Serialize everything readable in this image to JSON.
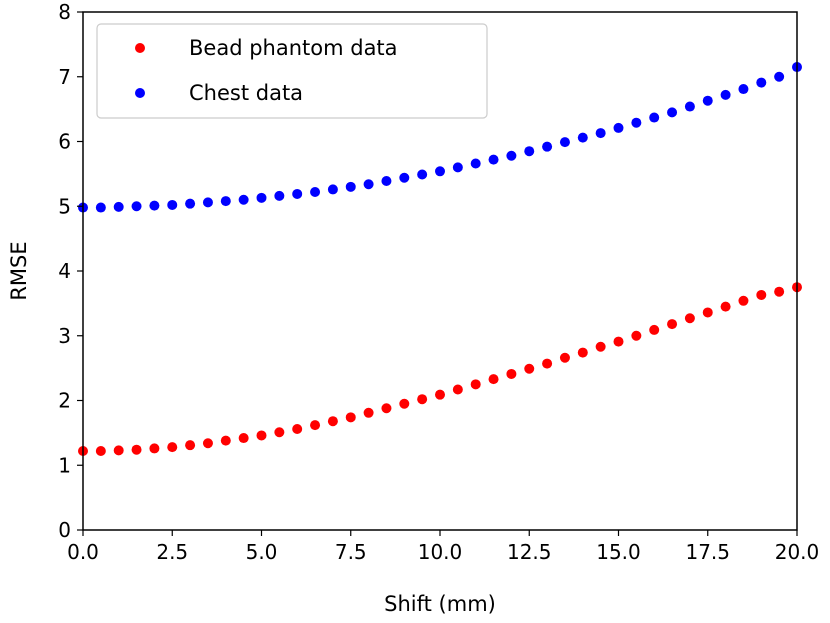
{
  "chart_data": {
    "type": "scatter",
    "title": "",
    "xlabel": "Shift (mm)",
    "ylabel": "RMSE",
    "xlim": [
      0,
      20
    ],
    "ylim": [
      0,
      8
    ],
    "xticks": [
      "0.0",
      "2.5",
      "5.0",
      "7.5",
      "10.0",
      "12.5",
      "15.0",
      "17.5",
      "20.0"
    ],
    "yticks": [
      "0",
      "1",
      "2",
      "3",
      "4",
      "5",
      "6",
      "7",
      "8"
    ],
    "grid": false,
    "legend_position": "upper-left",
    "x": [
      0.0,
      0.5,
      1.0,
      1.5,
      2.0,
      2.5,
      3.0,
      3.5,
      4.0,
      4.5,
      5.0,
      5.5,
      6.0,
      6.5,
      7.0,
      7.5,
      8.0,
      8.5,
      9.0,
      9.5,
      10.0,
      10.5,
      11.0,
      11.5,
      12.0,
      12.5,
      13.0,
      13.5,
      14.0,
      14.5,
      15.0,
      15.5,
      16.0,
      16.5,
      17.0,
      17.5,
      18.0,
      18.5,
      19.0,
      19.5,
      20.0
    ],
    "series": [
      {
        "name": "Bead phantom data",
        "color": "#ff0000",
        "values": [
          1.22,
          1.22,
          1.23,
          1.24,
          1.26,
          1.28,
          1.31,
          1.34,
          1.38,
          1.42,
          1.46,
          1.51,
          1.56,
          1.62,
          1.68,
          1.74,
          1.81,
          1.88,
          1.95,
          2.02,
          2.09,
          2.17,
          2.25,
          2.33,
          2.41,
          2.49,
          2.57,
          2.66,
          2.74,
          2.83,
          2.91,
          3.0,
          3.09,
          3.18,
          3.27,
          3.36,
          3.45,
          3.54,
          3.63,
          3.68,
          3.75
        ]
      },
      {
        "name": "Chest data",
        "color": "#0000ff",
        "values": [
          4.98,
          4.98,
          4.99,
          5.0,
          5.01,
          5.02,
          5.04,
          5.06,
          5.08,
          5.1,
          5.13,
          5.16,
          5.19,
          5.22,
          5.26,
          5.3,
          5.34,
          5.39,
          5.44,
          5.49,
          5.54,
          5.6,
          5.66,
          5.72,
          5.78,
          5.85,
          5.92,
          5.99,
          6.06,
          6.13,
          6.21,
          6.29,
          6.37,
          6.45,
          6.54,
          6.63,
          6.72,
          6.81,
          6.91,
          7.0,
          7.15
        ]
      }
    ]
  }
}
